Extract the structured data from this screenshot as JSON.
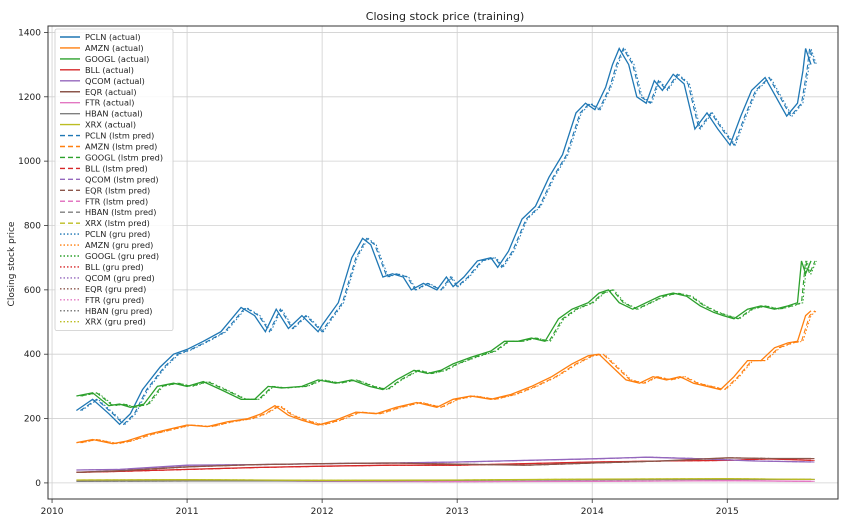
{
  "chart_data": {
    "type": "line",
    "title": "Closing stock price (training)",
    "xlabel": "",
    "ylabel": "Closing stock price",
    "xlim": [
      2009.97,
      2015.82
    ],
    "ylim": [
      -50,
      1420
    ],
    "grid": true,
    "legend_position": "upper-left",
    "x_ticks": [
      2010,
      2011,
      2012,
      2013,
      2014,
      2015
    ],
    "y_ticks": [
      0,
      200,
      400,
      600,
      800,
      1000,
      1200,
      1400
    ],
    "x_tick_labels": [
      "2010",
      "2011",
      "2012",
      "2013",
      "2014",
      "2015"
    ],
    "y_tick_labels": [
      "0",
      "200",
      "400",
      "600",
      "800",
      "1000",
      "1200",
      "1400"
    ],
    "series_base": [
      {
        "key": "PCLN",
        "color": "#1f77b4",
        "points": [
          [
            2010.18,
            225
          ],
          [
            2010.3,
            260
          ],
          [
            2010.42,
            215
          ],
          [
            2010.5,
            182
          ],
          [
            2010.58,
            215
          ],
          [
            2010.67,
            290
          ],
          [
            2010.8,
            360
          ],
          [
            2010.9,
            400
          ],
          [
            2011.0,
            415
          ],
          [
            2011.12,
            440
          ],
          [
            2011.25,
            470
          ],
          [
            2011.4,
            545
          ],
          [
            2011.5,
            520
          ],
          [
            2011.58,
            470
          ],
          [
            2011.66,
            540
          ],
          [
            2011.75,
            480
          ],
          [
            2011.85,
            520
          ],
          [
            2011.97,
            470
          ],
          [
            2012.0,
            490
          ],
          [
            2012.12,
            560
          ],
          [
            2012.22,
            700
          ],
          [
            2012.3,
            760
          ],
          [
            2012.36,
            740
          ],
          [
            2012.45,
            640
          ],
          [
            2012.52,
            650
          ],
          [
            2012.6,
            640
          ],
          [
            2012.66,
            600
          ],
          [
            2012.75,
            620
          ],
          [
            2012.85,
            600
          ],
          [
            2012.92,
            640
          ],
          [
            2012.97,
            610
          ],
          [
            2013.05,
            640
          ],
          [
            2013.15,
            690
          ],
          [
            2013.25,
            700
          ],
          [
            2013.3,
            670
          ],
          [
            2013.38,
            720
          ],
          [
            2013.48,
            820
          ],
          [
            2013.58,
            860
          ],
          [
            2013.68,
            950
          ],
          [
            2013.78,
            1020
          ],
          [
            2013.88,
            1150
          ],
          [
            2013.95,
            1180
          ],
          [
            2014.02,
            1160
          ],
          [
            2014.1,
            1230
          ],
          [
            2014.15,
            1300
          ],
          [
            2014.2,
            1350
          ],
          [
            2014.27,
            1300
          ],
          [
            2014.33,
            1200
          ],
          [
            2014.4,
            1180
          ],
          [
            2014.46,
            1250
          ],
          [
            2014.52,
            1220
          ],
          [
            2014.6,
            1270
          ],
          [
            2014.68,
            1240
          ],
          [
            2014.76,
            1100
          ],
          [
            2014.85,
            1150
          ],
          [
            2014.93,
            1100
          ],
          [
            2015.02,
            1050
          ],
          [
            2015.1,
            1140
          ],
          [
            2015.18,
            1220
          ],
          [
            2015.28,
            1260
          ],
          [
            2015.36,
            1200
          ],
          [
            2015.44,
            1140
          ],
          [
            2015.52,
            1180
          ],
          [
            2015.56,
            1280
          ],
          [
            2015.58,
            1350
          ],
          [
            2015.62,
            1300
          ]
        ]
      },
      {
        "key": "AMZN",
        "color": "#ff7f0e",
        "points": [
          [
            2010.18,
            125
          ],
          [
            2010.3,
            135
          ],
          [
            2010.45,
            122
          ],
          [
            2010.55,
            130
          ],
          [
            2010.7,
            150
          ],
          [
            2010.85,
            165
          ],
          [
            2011.0,
            180
          ],
          [
            2011.15,
            175
          ],
          [
            2011.3,
            190
          ],
          [
            2011.45,
            200
          ],
          [
            2011.55,
            215
          ],
          [
            2011.65,
            240
          ],
          [
            2011.75,
            210
          ],
          [
            2011.85,
            195
          ],
          [
            2011.97,
            180
          ],
          [
            2012.1,
            195
          ],
          [
            2012.25,
            220
          ],
          [
            2012.4,
            215
          ],
          [
            2012.55,
            235
          ],
          [
            2012.7,
            250
          ],
          [
            2012.85,
            235
          ],
          [
            2012.97,
            260
          ],
          [
            2013.1,
            270
          ],
          [
            2013.25,
            260
          ],
          [
            2013.4,
            275
          ],
          [
            2013.55,
            300
          ],
          [
            2013.7,
            330
          ],
          [
            2013.85,
            370
          ],
          [
            2013.97,
            395
          ],
          [
            2014.05,
            400
          ],
          [
            2014.15,
            360
          ],
          [
            2014.25,
            320
          ],
          [
            2014.35,
            310
          ],
          [
            2014.45,
            330
          ],
          [
            2014.55,
            320
          ],
          [
            2014.65,
            330
          ],
          [
            2014.75,
            310
          ],
          [
            2014.85,
            300
          ],
          [
            2014.95,
            290
          ],
          [
            2015.05,
            330
          ],
          [
            2015.15,
            380
          ],
          [
            2015.25,
            380
          ],
          [
            2015.35,
            420
          ],
          [
            2015.45,
            435
          ],
          [
            2015.52,
            440
          ],
          [
            2015.58,
            520
          ],
          [
            2015.62,
            535
          ]
        ]
      },
      {
        "key": "GOOGL",
        "color": "#2ca02c",
        "points": [
          [
            2010.18,
            270
          ],
          [
            2010.3,
            280
          ],
          [
            2010.42,
            240
          ],
          [
            2010.5,
            245
          ],
          [
            2010.58,
            235
          ],
          [
            2010.68,
            245
          ],
          [
            2010.78,
            300
          ],
          [
            2010.9,
            310
          ],
          [
            2011.0,
            300
          ],
          [
            2011.12,
            315
          ],
          [
            2011.25,
            290
          ],
          [
            2011.4,
            260
          ],
          [
            2011.5,
            260
          ],
          [
            2011.6,
            300
          ],
          [
            2011.7,
            295
          ],
          [
            2011.85,
            300
          ],
          [
            2011.97,
            320
          ],
          [
            2012.1,
            310
          ],
          [
            2012.22,
            320
          ],
          [
            2012.35,
            300
          ],
          [
            2012.45,
            290
          ],
          [
            2012.55,
            320
          ],
          [
            2012.68,
            350
          ],
          [
            2012.78,
            340
          ],
          [
            2012.88,
            350
          ],
          [
            2012.97,
            370
          ],
          [
            2013.1,
            390
          ],
          [
            2013.25,
            410
          ],
          [
            2013.35,
            440
          ],
          [
            2013.45,
            440
          ],
          [
            2013.55,
            450
          ],
          [
            2013.65,
            440
          ],
          [
            2013.75,
            510
          ],
          [
            2013.85,
            540
          ],
          [
            2013.97,
            560
          ],
          [
            2014.05,
            590
          ],
          [
            2014.12,
            600
          ],
          [
            2014.2,
            560
          ],
          [
            2014.3,
            540
          ],
          [
            2014.4,
            560
          ],
          [
            2014.5,
            580
          ],
          [
            2014.6,
            590
          ],
          [
            2014.7,
            580
          ],
          [
            2014.8,
            550
          ],
          [
            2014.9,
            530
          ],
          [
            2014.97,
            520
          ],
          [
            2015.05,
            510
          ],
          [
            2015.15,
            540
          ],
          [
            2015.25,
            550
          ],
          [
            2015.35,
            540
          ],
          [
            2015.45,
            550
          ],
          [
            2015.52,
            560
          ],
          [
            2015.55,
            690
          ],
          [
            2015.58,
            650
          ],
          [
            2015.62,
            690
          ]
        ]
      },
      {
        "key": "BLL",
        "color": "#d62728",
        "points": [
          [
            2010.18,
            33
          ],
          [
            2010.5,
            36
          ],
          [
            2011.0,
            42
          ],
          [
            2011.5,
            48
          ],
          [
            2012.0,
            52
          ],
          [
            2012.5,
            55
          ],
          [
            2013.0,
            55
          ],
          [
            2013.5,
            60
          ],
          [
            2014.0,
            65
          ],
          [
            2014.5,
            68
          ],
          [
            2015.0,
            70
          ],
          [
            2015.3,
            75
          ],
          [
            2015.62,
            70
          ]
        ]
      },
      {
        "key": "QCOM",
        "color": "#9467bd",
        "points": [
          [
            2010.18,
            40
          ],
          [
            2010.5,
            42
          ],
          [
            2011.0,
            55
          ],
          [
            2011.5,
            57
          ],
          [
            2012.0,
            60
          ],
          [
            2012.5,
            62
          ],
          [
            2013.0,
            65
          ],
          [
            2013.5,
            70
          ],
          [
            2014.0,
            75
          ],
          [
            2014.4,
            80
          ],
          [
            2014.8,
            75
          ],
          [
            2015.2,
            68
          ],
          [
            2015.62,
            65
          ]
        ]
      },
      {
        "key": "EQR",
        "color": "#8c564b",
        "points": [
          [
            2010.18,
            33
          ],
          [
            2010.5,
            38
          ],
          [
            2011.0,
            50
          ],
          [
            2011.5,
            57
          ],
          [
            2012.0,
            60
          ],
          [
            2012.5,
            62
          ],
          [
            2013.0,
            58
          ],
          [
            2013.5,
            55
          ],
          [
            2014.0,
            62
          ],
          [
            2014.5,
            68
          ],
          [
            2015.0,
            78
          ],
          [
            2015.3,
            76
          ],
          [
            2015.62,
            76
          ]
        ]
      },
      {
        "key": "FTR",
        "color": "#e377c2",
        "points": [
          [
            2010.18,
            7
          ],
          [
            2011.0,
            9
          ],
          [
            2012.0,
            5
          ],
          [
            2013.0,
            4
          ],
          [
            2014.0,
            5
          ],
          [
            2015.0,
            7
          ],
          [
            2015.62,
            5
          ]
        ]
      },
      {
        "key": "HBAN",
        "color": "#7f7f7f",
        "points": [
          [
            2010.18,
            5
          ],
          [
            2011.0,
            6
          ],
          [
            2012.0,
            6
          ],
          [
            2013.0,
            8
          ],
          [
            2014.0,
            10
          ],
          [
            2015.0,
            11
          ],
          [
            2015.62,
            11
          ]
        ]
      },
      {
        "key": "XRX",
        "color": "#bcbd22",
        "points": [
          [
            2010.18,
            9
          ],
          [
            2011.0,
            10
          ],
          [
            2012.0,
            8
          ],
          [
            2013.0,
            9
          ],
          [
            2014.0,
            12
          ],
          [
            2015.0,
            13
          ],
          [
            2015.62,
            11
          ]
        ]
      }
    ],
    "legend": [
      {
        "label": "PCLN (actual)",
        "color": "#1f77b4",
        "style": "solid"
      },
      {
        "label": "AMZN (actual)",
        "color": "#ff7f0e",
        "style": "solid"
      },
      {
        "label": "GOOGL (actual)",
        "color": "#2ca02c",
        "style": "solid"
      },
      {
        "label": "BLL (actual)",
        "color": "#d62728",
        "style": "solid"
      },
      {
        "label": "QCOM (actual)",
        "color": "#9467bd",
        "style": "solid"
      },
      {
        "label": "EQR (actual)",
        "color": "#8c564b",
        "style": "solid"
      },
      {
        "label": "FTR (actual)",
        "color": "#e377c2",
        "style": "solid"
      },
      {
        "label": "HBAN (actual)",
        "color": "#7f7f7f",
        "style": "solid"
      },
      {
        "label": "XRX (actual)",
        "color": "#bcbd22",
        "style": "solid"
      },
      {
        "label": "PCLN (lstm pred)",
        "color": "#1f77b4",
        "style": "dashed"
      },
      {
        "label": "AMZN (lstm pred)",
        "color": "#ff7f0e",
        "style": "dashed"
      },
      {
        "label": "GOOGL (lstm pred)",
        "color": "#2ca02c",
        "style": "dashed"
      },
      {
        "label": "BLL (lstm pred)",
        "color": "#d62728",
        "style": "dashed"
      },
      {
        "label": "QCOM (lstm pred)",
        "color": "#9467bd",
        "style": "dashed"
      },
      {
        "label": "EQR (lstm pred)",
        "color": "#8c564b",
        "style": "dashed"
      },
      {
        "label": "FTR (lstm pred)",
        "color": "#e377c2",
        "style": "dashed"
      },
      {
        "label": "HBAN (lstm pred)",
        "color": "#7f7f7f",
        "style": "dashed"
      },
      {
        "label": "XRX (lstm pred)",
        "color": "#bcbd22",
        "style": "dashed"
      },
      {
        "label": "PCLN (gru pred)",
        "color": "#1f77b4",
        "style": "dotted"
      },
      {
        "label": "AMZN (gru pred)",
        "color": "#ff7f0e",
        "style": "dotted"
      },
      {
        "label": "GOOGL (gru pred)",
        "color": "#2ca02c",
        "style": "dotted"
      },
      {
        "label": "BLL (gru pred)",
        "color": "#d62728",
        "style": "dotted"
      },
      {
        "label": "QCOM (gru pred)",
        "color": "#9467bd",
        "style": "dotted"
      },
      {
        "label": "EQR (gru pred)",
        "color": "#8c564b",
        "style": "dotted"
      },
      {
        "label": "FTR (gru pred)",
        "color": "#e377c2",
        "style": "dotted"
      },
      {
        "label": "HBAN (gru pred)",
        "color": "#7f7f7f",
        "style": "dotted"
      },
      {
        "label": "XRX (gru pred)",
        "color": "#bcbd22",
        "style": "dotted"
      }
    ]
  }
}
